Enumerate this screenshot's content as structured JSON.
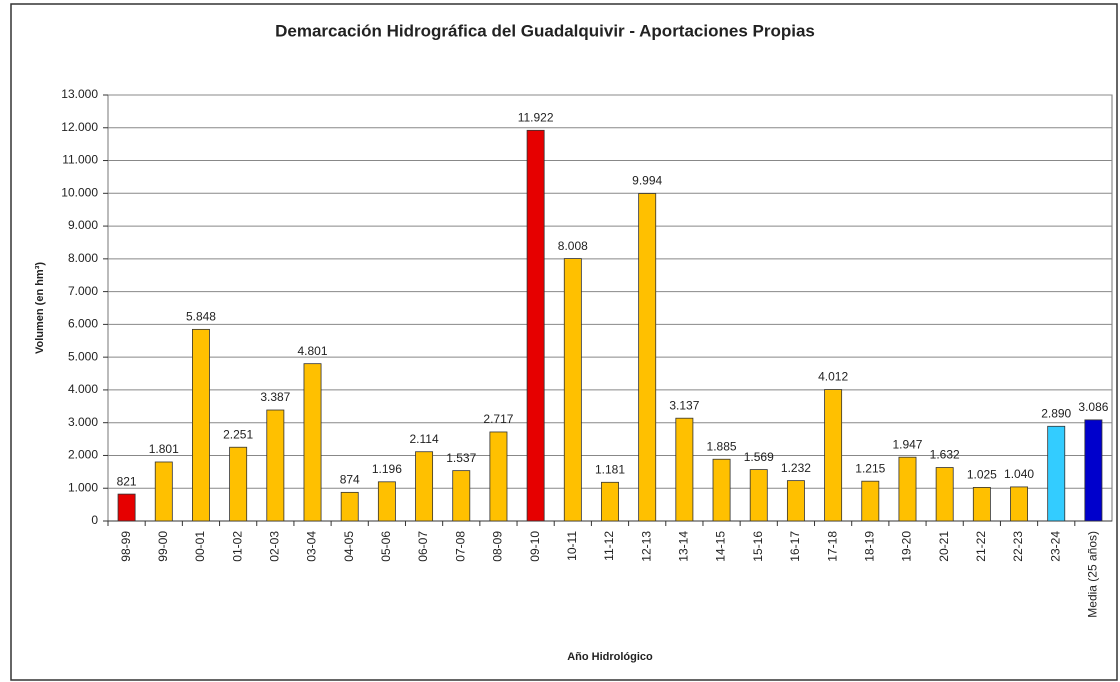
{
  "chart_data": {
    "type": "bar",
    "title": "Demarcación Hidrográfica del Guadalquivir - Aportaciones Propias",
    "y_label": "Volumen (en hm³)",
    "x_label": "Año Hidrológico",
    "categories": [
      "98-99",
      "99-00",
      "00-01",
      "01-02",
      "02-03",
      "03-04",
      "04-05",
      "05-06",
      "06-07",
      "07-08",
      "08-09",
      "09-10",
      "10-11",
      "11-12",
      "12-13",
      "13-14",
      "14-15",
      "15-16",
      "16-17",
      "17-18",
      "18-19",
      "19-20",
      "20-21",
      "21-22",
      "22-23",
      "23-24",
      "Media (25 años)"
    ],
    "values": [
      821,
      1801,
      5848,
      2251,
      3387,
      4801,
      874,
      1196,
      2114,
      1537,
      2717,
      11922,
      8008,
      1181,
      9994,
      3137,
      1885,
      1569,
      1232,
      4012,
      1215,
      1947,
      1632,
      1025,
      1040,
      2890,
      3086
    ],
    "value_labels": [
      "821",
      "1.801",
      "5.848",
      "2.251",
      "3.387",
      "4.801",
      "874",
      "1.196",
      "2.114",
      "1.537",
      "2.717",
      "11.922",
      "8.008",
      "1.181",
      "9.994",
      "3.137",
      "1.885",
      "1.569",
      "1.232",
      "4.012",
      "1.215",
      "1.947",
      "1.632",
      "1.025",
      "1.040",
      "2.890",
      "3.086"
    ],
    "colors": [
      "#e60000",
      "#ffc000",
      "#ffc000",
      "#ffc000",
      "#ffc000",
      "#ffc000",
      "#ffc000",
      "#ffc000",
      "#ffc000",
      "#ffc000",
      "#ffc000",
      "#e60000",
      "#ffc000",
      "#ffc000",
      "#ffc000",
      "#ffc000",
      "#ffc000",
      "#ffc000",
      "#ffc000",
      "#ffc000",
      "#ffc000",
      "#ffc000",
      "#ffc000",
      "#ffc000",
      "#ffc000",
      "#33ccff",
      "#0000cc"
    ],
    "ylim": [
      0,
      13000
    ],
    "yticks": [
      0,
      {
        "value": 1000,
        "label": "1.000"
      },
      {
        "value": 2000,
        "label": "2.000"
      },
      {
        "value": 3000,
        "label": "3.000"
      },
      {
        "value": 4000,
        "label": "4.000"
      },
      {
        "value": 5000,
        "label": "5.000"
      },
      {
        "value": 6000,
        "label": "6.000"
      },
      {
        "value": 7000,
        "label": "7.000"
      },
      {
        "value": 8000,
        "label": "8.000"
      },
      {
        "value": 9000,
        "label": "9.000"
      },
      {
        "value": 10000,
        "label": "10.000"
      },
      {
        "value": 11000,
        "label": "11.000"
      },
      {
        "value": 12000,
        "label": "12.000"
      },
      {
        "value": 13000,
        "label": "13.000"
      }
    ],
    "grid": true
  }
}
